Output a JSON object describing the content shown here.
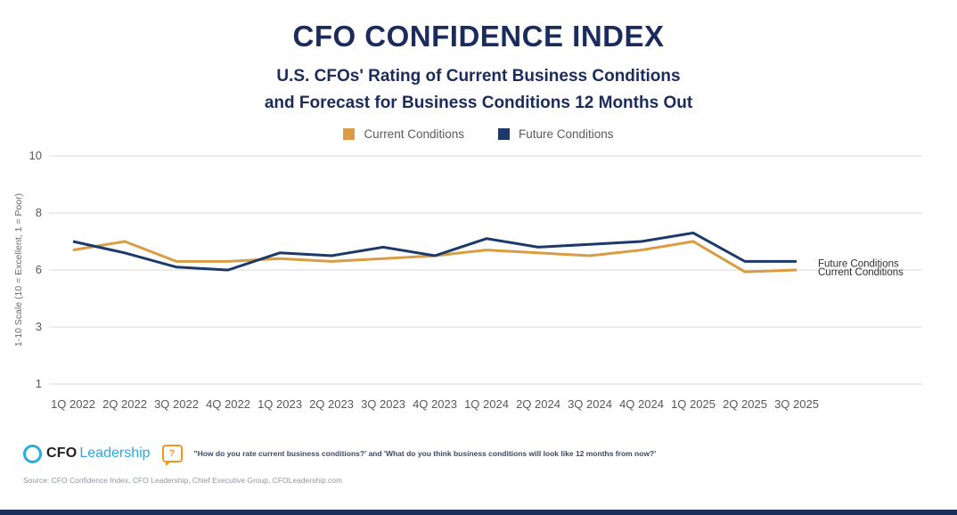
{
  "title": "CFO CONFIDENCE INDEX",
  "subtitle_line1": "U.S. CFOs' Rating of Current Business Conditions",
  "subtitle_line2": "and Forecast for Business Conditions 12 Months Out",
  "legend": {
    "current_label": "Current Conditions",
    "future_label": "Future Conditions"
  },
  "colors": {
    "title_navy": "#1A2B5C",
    "line_navy": "#1B3A6B",
    "line_gold": "#D99C43",
    "grid_gray": "#D9D9D9",
    "axis_text": "#58595B",
    "end_label_text": "#2F2F2F",
    "logo_blue": "#29ABE2",
    "bubble_orange": "#F7941E",
    "bottom_bar_navy": "#1B2D5B"
  },
  "chart_data": {
    "type": "line",
    "title": "CFO Confidence Index",
    "categories": [
      "1Q 2022",
      "2Q 2022",
      "3Q 2022",
      "4Q 2022",
      "1Q 2023",
      "2Q 2023",
      "3Q 2023",
      "4Q 2023",
      "1Q 2024",
      "2Q 2024",
      "3Q 2024",
      "4Q 2024",
      "1Q 2025",
      "2Q 2025",
      "3Q 2025"
    ],
    "series": [
      {
        "name": "Current Conditions",
        "color": "#D99C43",
        "values": [
          6.7,
          7.0,
          6.3,
          6.3,
          6.4,
          6.3,
          6.4,
          6.5,
          6.7,
          6.6,
          6.5,
          6.7,
          7.0,
          5.9,
          6.0
        ]
      },
      {
        "name": "Future Conditions",
        "color": "#1B3A6B",
        "values": [
          7.0,
          6.6,
          6.1,
          6.0,
          6.6,
          6.5,
          6.8,
          6.5,
          7.1,
          6.8,
          6.9,
          7.0,
          7.3,
          6.3,
          6.3
        ]
      }
    ],
    "y_ticks": [
      10,
      8,
      6,
      3,
      1
    ],
    "ylabel": "1-10 Scale (10 = Excellent, 1 = Poor)",
    "xlabel": "",
    "grid": true,
    "legend_position": "top",
    "end_labels": [
      "Future Conditions",
      "Current Conditions"
    ]
  },
  "footer": {
    "logo_cfo": "CFO",
    "logo_leadership": "Leadership",
    "question_icon": "?",
    "question_text": "\"How do you rate current business conditions?' and 'What do you think business conditions will look like 12 months from now?'",
    "source_text": "Source: CFO Confidence Index, CFO Leadership, Chief Executive Group, CFOLeadership.com"
  }
}
